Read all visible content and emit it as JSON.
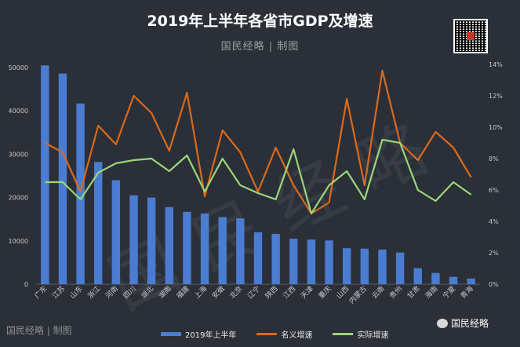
{
  "title": "2019年上半年各省市GDP及增速",
  "subtitle": "国民经略 | 制图",
  "footer_brand": "国民经略 | 制图",
  "wechat_label": "国民经略",
  "watermark": "国民经略",
  "colors": {
    "bar": "#4a7cd1",
    "nominal": "#d96a1b",
    "real": "#9ad67a",
    "background": "#2b2f38",
    "axis_text": "#c8c8c8"
  },
  "chart_data": {
    "type": "bar",
    "title": "2019年上半年各省市GDP及增速",
    "categories": [
      "广东",
      "江苏",
      "山东",
      "浙江",
      "河南",
      "四川",
      "湖北",
      "湖南",
      "福建",
      "上海",
      "安徽",
      "北京",
      "辽宁",
      "陕西",
      "江西",
      "天津",
      "重庆",
      "山西",
      "内蒙古",
      "云南",
      "贵州",
      "甘肃",
      "海南",
      "宁夏",
      "青海"
    ],
    "series": [
      {
        "name": "2019年上半年",
        "type": "bar",
        "axis": "left",
        "values": [
          50500,
          48600,
          41700,
          28200,
          24000,
          20500,
          20000,
          17800,
          16700,
          16300,
          15500,
          15200,
          12000,
          11600,
          10500,
          10300,
          10100,
          8300,
          8200,
          8000,
          7300,
          3700,
          2600,
          1700,
          1300
        ]
      },
      {
        "name": "名义增速",
        "type": "line",
        "axis": "right",
        "values": [
          9.0,
          8.4,
          5.9,
          10.1,
          8.9,
          12.0,
          10.9,
          8.5,
          12.2,
          5.6,
          9.8,
          8.4,
          5.9,
          8.7,
          6.3,
          4.5,
          5.2,
          11.8,
          6.3,
          13.6,
          9.0,
          7.9,
          9.7,
          8.7,
          6.8
        ]
      },
      {
        "name": "实际增速",
        "type": "line",
        "axis": "right",
        "values": [
          6.5,
          6.5,
          5.4,
          7.1,
          7.7,
          7.9,
          8.0,
          7.2,
          8.2,
          5.9,
          8.0,
          6.3,
          5.8,
          5.4,
          8.6,
          4.5,
          6.3,
          7.2,
          5.4,
          9.2,
          9.0,
          6.0,
          5.3,
          6.5,
          5.7
        ]
      }
    ],
    "ylim_left": [
      0,
      50000
    ],
    "left_ticks": [
      "0",
      "10000",
      "20000",
      "30000",
      "40000",
      "50000"
    ],
    "ylim_right": [
      0,
      14
    ],
    "right_ticks": [
      "0%",
      "2%",
      "4%",
      "6%",
      "8%",
      "10%",
      "12%",
      "14%"
    ],
    "legend": [
      "2019年上半年",
      "名义增速",
      "实际增速"
    ],
    "legend_position": "bottom",
    "grid": false
  }
}
